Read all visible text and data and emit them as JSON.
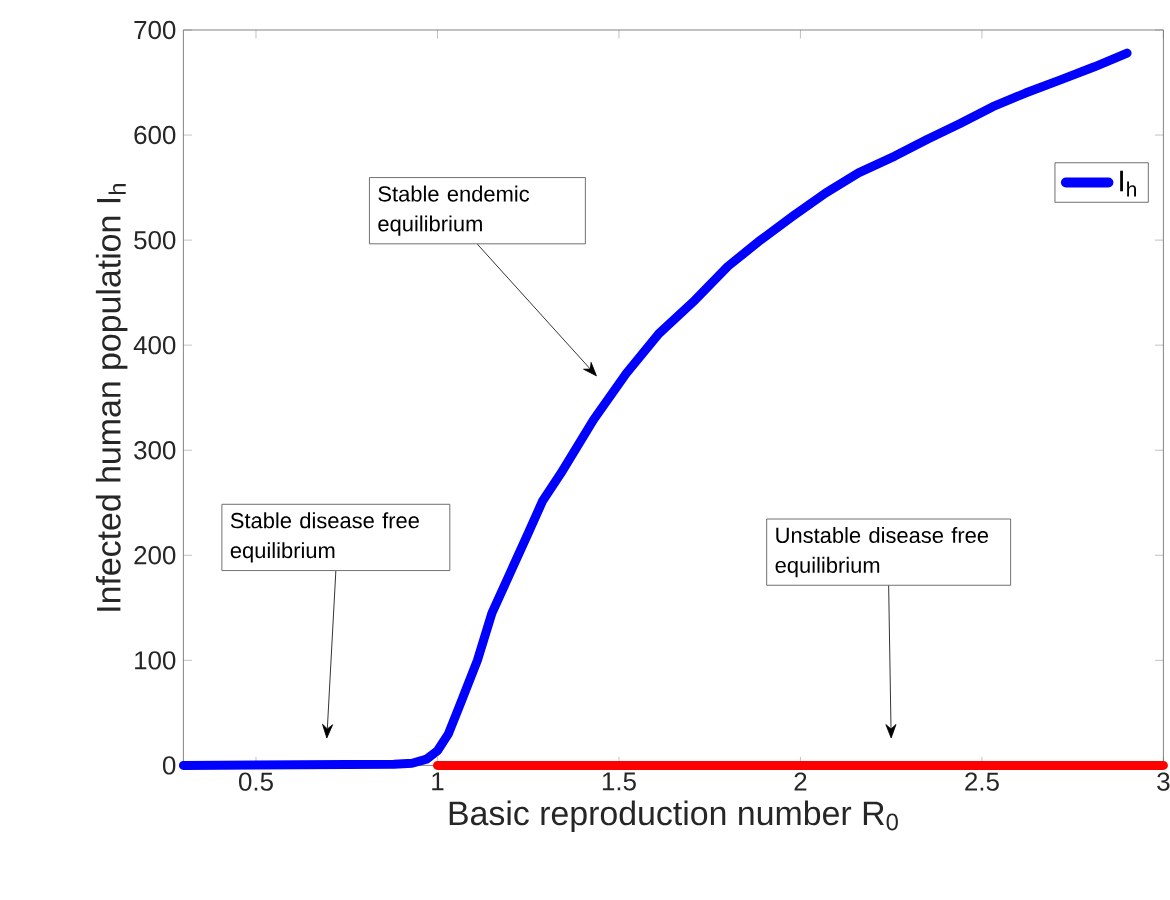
{
  "chart_data": {
    "type": "line",
    "xlabel": "Basic reproduction number R$_{0}$",
    "ylabel": "Infected human population I$_{h}$",
    "xlim": [
      0.3,
      3
    ],
    "ylim": [
      0,
      700
    ],
    "xticks": [
      0.5,
      1,
      1.5,
      2,
      2.5,
      3
    ],
    "yticks": [
      0,
      100,
      200,
      300,
      400,
      500,
      600,
      700
    ],
    "legend": "top right",
    "grid": false,
    "marker": "none",
    "line_style": "solid",
    "series": [
      {
        "name": "I$_{h}$",
        "color": "#0000ff",
        "x": [
          0.3,
          0.88,
          0.93,
          0.97,
          1.0,
          1.03,
          1.06,
          1.11,
          1.15,
          1.2,
          1.25,
          1.29,
          1.34,
          1.43,
          1.52,
          1.61,
          1.71,
          1.8,
          1.89,
          1.98,
          2.07,
          2.16,
          2.26,
          2.35,
          2.44,
          2.53,
          2.62,
          2.72,
          2.81,
          2.9
        ],
        "values": [
          0,
          1,
          2,
          6,
          14,
          30,
          56,
          100,
          145,
          183,
          221,
          252,
          278,
          329,
          373,
          411,
          443,
          475,
          500,
          523,
          545,
          564,
          580,
          596,
          611,
          627,
          640,
          653,
          665,
          678
        ]
      },
      {
        "color": "#ff0000",
        "x": [
          1,
          3
        ],
        "values": [
          0,
          0
        ]
      }
    ],
    "annotations": [
      "Stable endemic equilibrium",
      "Stable disease free equilibrium",
      "Unstable disease free equilibrium"
    ]
  }
}
